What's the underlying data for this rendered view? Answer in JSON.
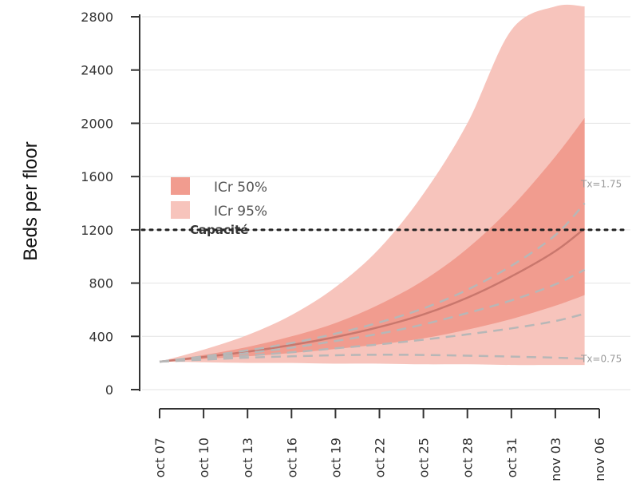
{
  "chart_data": {
    "type": "area",
    "ylabel": "Beds per floor",
    "xlabel": "",
    "title": "",
    "ylim": [
      0,
      2800
    ],
    "yticks": [
      0,
      400,
      800,
      1200,
      1600,
      2000,
      2400,
      2800
    ],
    "ytick_labels": [
      "0",
      "400",
      "800",
      "1200",
      "1600",
      "2000",
      "2400",
      "2800"
    ],
    "x_tick_labels": [
      "oct 07",
      "oct 10",
      "oct 13",
      "oct 16",
      "oct 19",
      "oct 22",
      "oct 25",
      "oct 28",
      "oct 31",
      "nov 03",
      "nov 06"
    ],
    "x_tick_days": [
      0,
      3,
      6,
      9,
      12,
      15,
      18,
      21,
      24,
      27,
      30
    ],
    "x_day_range": [
      -1,
      31
    ],
    "grid": "horizontal",
    "legend_position": "left",
    "series": [
      {
        "name": "ICr 95%",
        "kind": "band",
        "color": "#f7c4bc",
        "x": [
          0,
          3,
          6,
          9,
          12,
          15,
          18,
          21,
          24,
          27,
          29
        ],
        "lower": [
          210,
          205,
          200,
          200,
          195,
          195,
          190,
          190,
          185,
          185,
          185
        ],
        "upper": [
          210,
          300,
          410,
          560,
          770,
          1060,
          1470,
          2000,
          2700,
          3600,
          4300
        ]
      },
      {
        "name": "ICr 50%",
        "kind": "band",
        "color": "#f19c8f",
        "x": [
          0,
          3,
          6,
          9,
          12,
          15,
          18,
          21,
          24,
          27,
          29
        ],
        "lower": [
          210,
          230,
          250,
          275,
          305,
          340,
          385,
          450,
          530,
          630,
          710
        ],
        "upper": [
          210,
          260,
          320,
          400,
          500,
          640,
          820,
          1060,
          1370,
          1750,
          2040
        ]
      },
      {
        "name": "median",
        "kind": "line",
        "color": "#c9776d",
        "x": [
          0,
          3,
          6,
          9,
          12,
          15,
          18,
          21,
          24,
          27,
          29
        ],
        "y": [
          210,
          245,
          285,
          335,
          395,
          470,
          565,
          690,
          850,
          1040,
          1210
        ]
      },
      {
        "name": "Tx=1.75",
        "kind": "dashed",
        "color": "#b7b7b7",
        "x": [
          0,
          3,
          6,
          9,
          12,
          15,
          18,
          21,
          24,
          27,
          29
        ],
        "y": [
          210,
          250,
          295,
          350,
          420,
          505,
          610,
          750,
          930,
          1160,
          1400
        ]
      },
      {
        "name": "",
        "kind": "dashed",
        "color": "#b7b7b7",
        "x": [
          0,
          3,
          6,
          9,
          12,
          15,
          18,
          21,
          24,
          27,
          29
        ],
        "y": [
          210,
          240,
          275,
          315,
          365,
          420,
          490,
          575,
          670,
          790,
          900
        ]
      },
      {
        "name": "",
        "kind": "dashed",
        "color": "#b7b7b7",
        "x": [
          0,
          3,
          6,
          9,
          12,
          15,
          18,
          21,
          24,
          27,
          29
        ],
        "y": [
          210,
          232,
          255,
          280,
          310,
          340,
          375,
          415,
          460,
          515,
          570
        ]
      },
      {
        "name": "Tx=0.75",
        "kind": "dashed",
        "color": "#b7b7b7",
        "x": [
          0,
          3,
          6,
          9,
          12,
          15,
          18,
          21,
          24,
          27,
          29
        ],
        "y": [
          210,
          225,
          240,
          250,
          258,
          262,
          260,
          255,
          248,
          240,
          232
        ]
      }
    ],
    "capacity": {
      "label": "Capacité",
      "value": 1200,
      "color": "#222222"
    },
    "legend": [
      {
        "label": "ICr 50%",
        "color": "#f19c8f"
      },
      {
        "label": "ICr 95%",
        "color": "#f7c4bc"
      }
    ],
    "annotations": [
      {
        "text": "Tx=1.75",
        "series_index": 3
      },
      {
        "text": "Tx=0.75",
        "series_index": 6
      }
    ],
    "colors": {
      "grid": "#e3e3e3",
      "axis": "#333333"
    }
  }
}
